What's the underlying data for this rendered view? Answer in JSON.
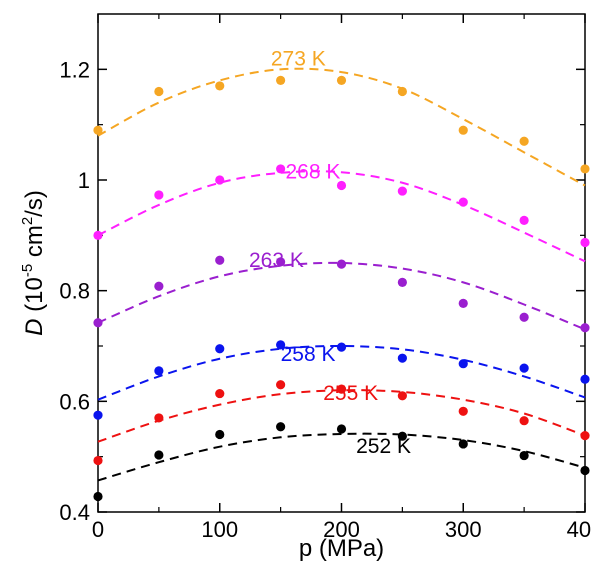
{
  "chart_data": {
    "type": "scatter",
    "xlabel": "p (MPa)",
    "ylabel": {
      "symbol": "D",
      "unit_open": " (10",
      "exp1": "-5",
      "unit_mid": " cm",
      "exp2": "2",
      "unit_close": "/s)"
    },
    "xlim": [
      0,
      400
    ],
    "ylim": [
      0.4,
      1.3
    ],
    "xticks": [
      0,
      100,
      200,
      300,
      400
    ],
    "xtick_labels": [
      "0",
      "100",
      "200",
      "300",
      "400"
    ],
    "yticks": [
      0.4,
      0.6,
      0.8,
      1.0,
      1.2
    ],
    "ytick_labels": [
      "0.4",
      "0.6",
      "0.8",
      "1",
      "1.2"
    ],
    "grid": false,
    "x": [
      0,
      50,
      100,
      150,
      200,
      250,
      300,
      350,
      400
    ],
    "series": [
      {
        "name": "273 K",
        "color": "#f5a623",
        "values": [
          1.09,
          1.16,
          1.17,
          1.18,
          1.18,
          1.16,
          1.09,
          1.07,
          1.02
        ],
        "fit_x": [
          0,
          50,
          100,
          150,
          200,
          250,
          300,
          350,
          400
        ],
        "fit_y": [
          1.08,
          1.14,
          1.18,
          1.2,
          1.195,
          1.165,
          1.11,
          1.05,
          0.99
        ]
      },
      {
        "name": "268 K",
        "color": "#ff1fff",
        "values": [
          0.9,
          0.973,
          1.0,
          1.02,
          0.99,
          0.98,
          0.96,
          0.927,
          0.887
        ],
        "fit_x": [
          0,
          50,
          100,
          150,
          200,
          250,
          300,
          350,
          400
        ],
        "fit_y": [
          0.9,
          0.955,
          0.995,
          1.013,
          1.014,
          0.995,
          0.955,
          0.905,
          0.853
        ]
      },
      {
        "name": "263 K",
        "color": "#9a1fcf",
        "values": [
          0.742,
          0.808,
          0.855,
          0.852,
          0.848,
          0.815,
          0.777,
          0.752,
          0.733
        ],
        "fit_x": [
          0,
          50,
          100,
          150,
          200,
          250,
          300,
          350,
          400
        ],
        "fit_y": [
          0.742,
          0.79,
          0.826,
          0.845,
          0.85,
          0.84,
          0.815,
          0.775,
          0.73
        ]
      },
      {
        "name": "258 K",
        "color": "#0a14ee",
        "values": [
          0.575,
          0.655,
          0.695,
          0.702,
          0.698,
          0.678,
          0.668,
          0.66,
          0.64
        ],
        "fit_x": [
          0,
          50,
          100,
          150,
          200,
          250,
          300,
          350,
          400
        ],
        "fit_y": [
          0.603,
          0.645,
          0.677,
          0.695,
          0.7,
          0.694,
          0.675,
          0.645,
          0.607
        ]
      },
      {
        "name": "255 K",
        "color": "#ee1111",
        "values": [
          0.493,
          0.57,
          0.614,
          0.63,
          0.622,
          0.61,
          0.582,
          0.565,
          0.538
        ],
        "fit_x": [
          0,
          50,
          100,
          150,
          200,
          250,
          300,
          350,
          400
        ],
        "fit_y": [
          0.527,
          0.565,
          0.594,
          0.613,
          0.62,
          0.617,
          0.603,
          0.578,
          0.538
        ]
      },
      {
        "name": "252 K",
        "color": "#000000",
        "values": [
          0.428,
          0.503,
          0.54,
          0.554,
          0.55,
          0.537,
          0.523,
          0.502,
          0.475
        ],
        "fit_x": [
          0,
          50,
          100,
          150,
          200,
          250,
          300,
          350,
          400
        ],
        "fit_y": [
          0.457,
          0.49,
          0.518,
          0.535,
          0.541,
          0.54,
          0.53,
          0.51,
          0.48
        ]
      }
    ]
  }
}
